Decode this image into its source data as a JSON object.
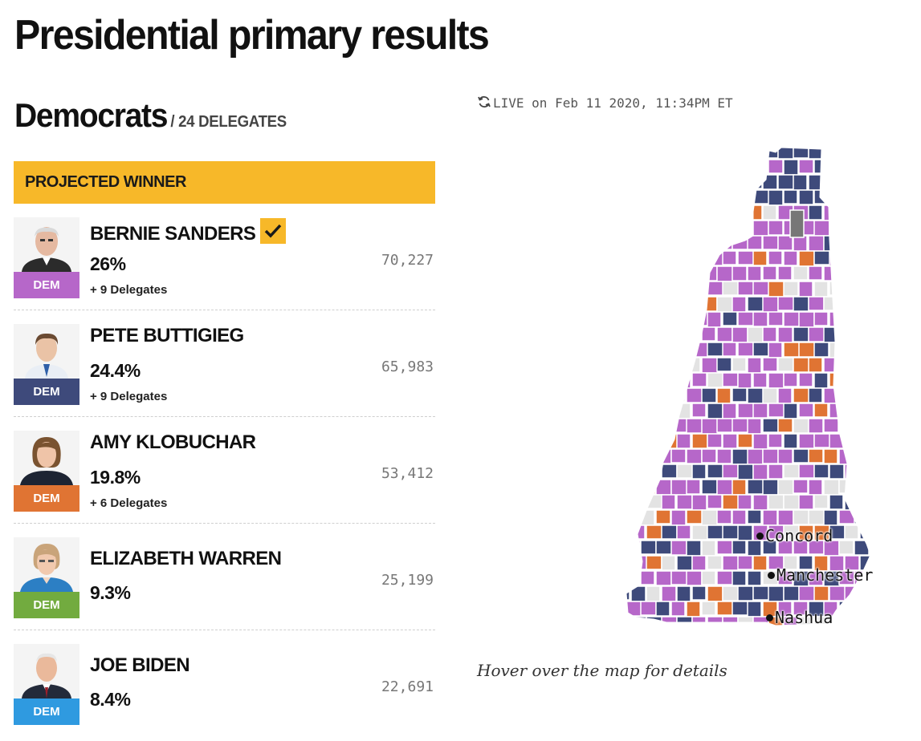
{
  "page_title": "Presidential primary results",
  "section": {
    "title": "Democrats",
    "subtitle": "/ 24 DELEGATES"
  },
  "winner_banner": "PROJECTED WINNER",
  "live": "LIVE on Feb 11 2020, 11:34PM ET",
  "colors": {
    "sanders": "#b667c9",
    "buttigieg": "#3e4a7b",
    "klobuchar": "#e07433",
    "warren": "#72ab3f",
    "biden": "#2f9ae0",
    "banner": "#f7b829",
    "no_result": "#e3e3e3",
    "tie": "#777777"
  },
  "candidates": [
    {
      "name": "BERNIE SANDERS",
      "pct": "26%",
      "delegates": "+ 9 Delegates",
      "votes": "70,227",
      "party": "DEM",
      "color": "#b667c9",
      "winner": true
    },
    {
      "name": "PETE BUTTIGIEG",
      "pct": "24.4%",
      "delegates": "+ 9 Delegates",
      "votes": "65,983",
      "party": "DEM",
      "color": "#3e4a7b",
      "winner": false
    },
    {
      "name": "AMY KLOBUCHAR",
      "pct": "19.8%",
      "delegates": "+ 6 Delegates",
      "votes": "53,412",
      "party": "DEM",
      "color": "#e07433",
      "winner": false
    },
    {
      "name": "ELIZABETH WARREN",
      "pct": "9.3%",
      "delegates": "",
      "votes": "25,199",
      "party": "DEM",
      "color": "#72ab3f",
      "winner": false
    },
    {
      "name": "JOE BIDEN",
      "pct": "8.4%",
      "delegates": "",
      "votes": "22,691",
      "party": "DEM",
      "color": "#2f9ae0",
      "winner": false
    }
  ],
  "map": {
    "cities": [
      "Concord",
      "Manchester",
      "Nashua"
    ]
  },
  "hover_hint": "Hover over the map for details"
}
